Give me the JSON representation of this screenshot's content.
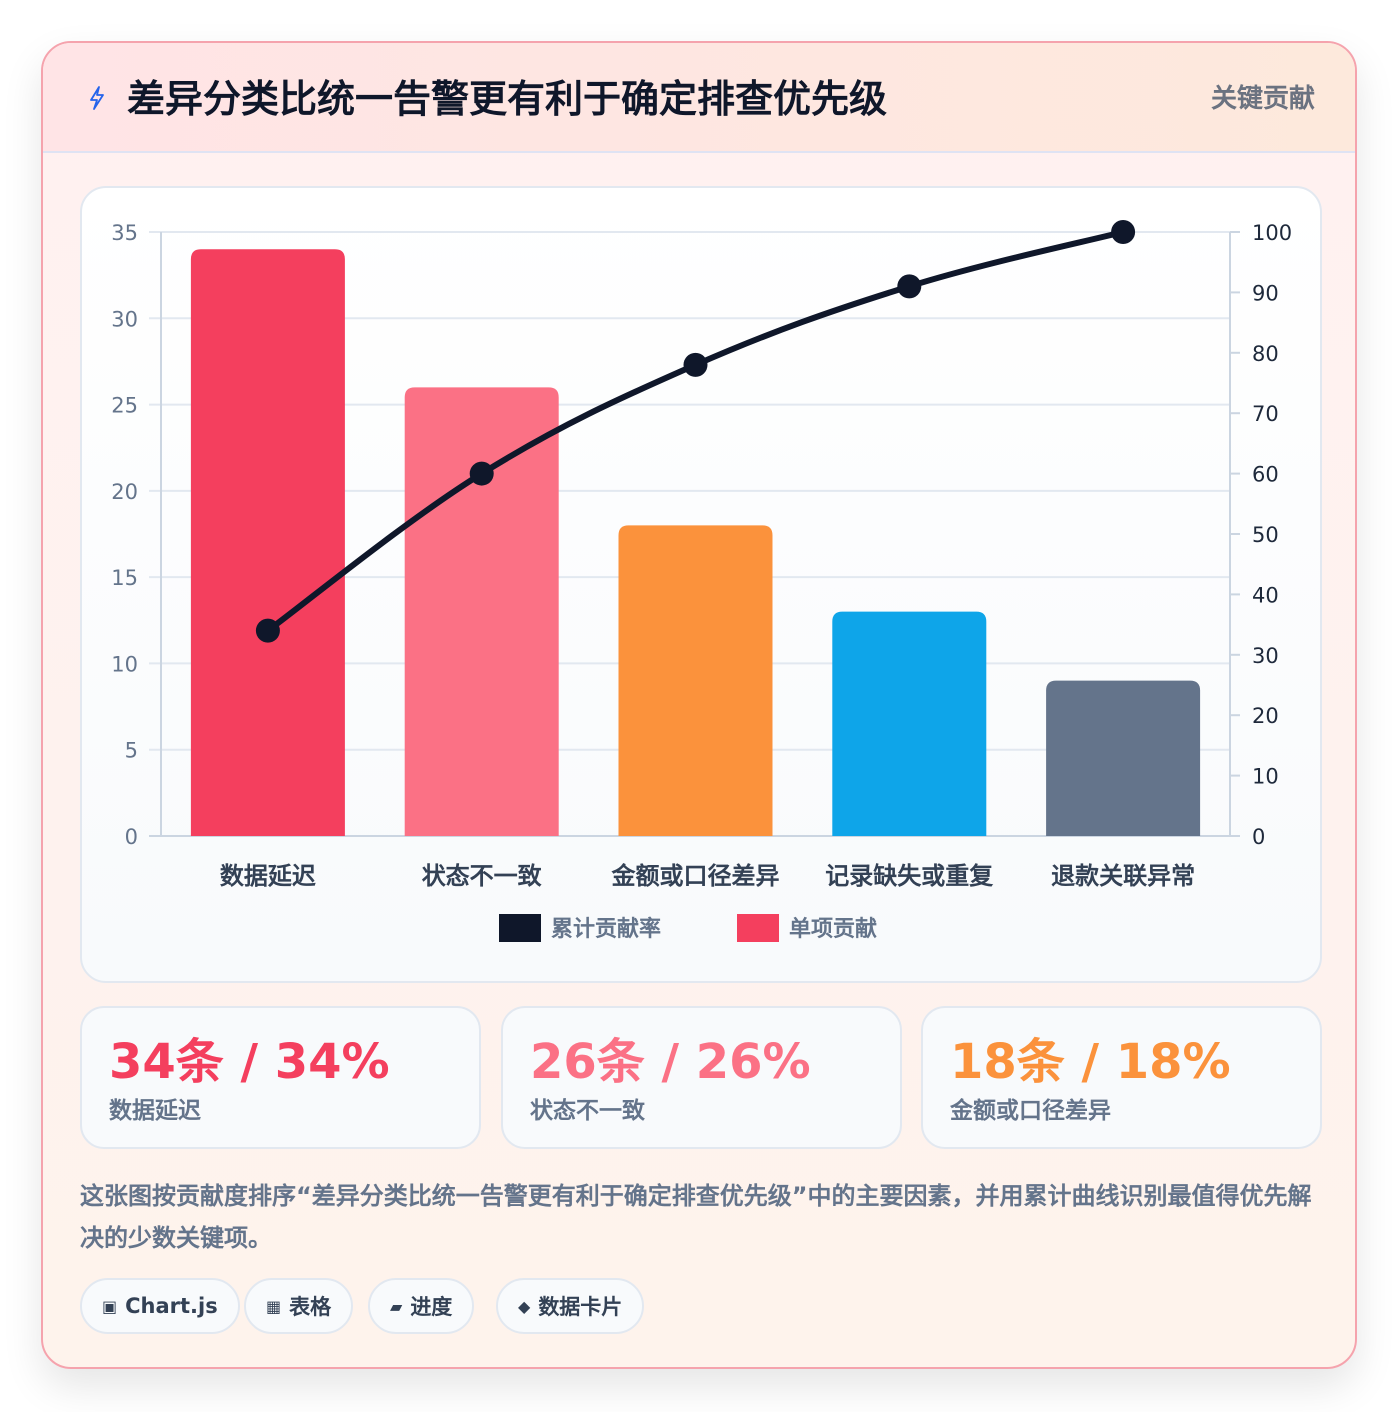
{
  "header": {
    "title": "差异分类比统一告警更有利于确定排查优先级",
    "tag": "关键贡献",
    "icon": "lightning-bolt-icon"
  },
  "chart_data": {
    "type": "bar",
    "categories": [
      "数据延迟",
      "状态不一致",
      "金额或口径差异",
      "记录缺失或重复",
      "退款关联异常"
    ],
    "series": [
      {
        "name": "单项贡献",
        "type": "bar",
        "axis": "left",
        "values": [
          34,
          26,
          18,
          13,
          9
        ]
      },
      {
        "name": "累计贡献率",
        "type": "line",
        "axis": "right",
        "values": [
          34,
          60,
          78,
          91,
          100
        ]
      }
    ],
    "bar_colors": [
      "#f43f5e",
      "#fb7185",
      "#fb923c",
      "#0ea5e9",
      "#64748b"
    ],
    "line_color": "#0f172a",
    "ylim_left": [
      0,
      35
    ],
    "ylim_right": [
      0,
      100
    ],
    "yticks_left": [
      "0",
      "5",
      "10",
      "15",
      "20",
      "25",
      "30",
      "35"
    ],
    "yticks_right": [
      "0",
      "10",
      "20",
      "30",
      "40",
      "50",
      "60",
      "70",
      "80",
      "90",
      "100"
    ],
    "legend": [
      {
        "label": "累计贡献率",
        "color": "#0f172a"
      },
      {
        "label": "单项贡献",
        "color": "#f43f5e"
      }
    ],
    "legend_position": "bottom",
    "grid": true
  },
  "stats": [
    {
      "value": "34条 / 34%",
      "label": "数据延迟",
      "color": "#f43f5e"
    },
    {
      "value": "26条 / 26%",
      "label": "状态不一致",
      "color": "#fb7185"
    },
    {
      "value": "18条 / 18%",
      "label": "金额或口径差异",
      "color": "#fb923c"
    }
  ],
  "description": "这张图按贡献度排序“差异分类比统一告警更有利于确定排查优先级”中的主要因素，并用累计曲线识别最值得优先解决的少数关键项。",
  "pills": [
    {
      "icon": "▣",
      "label": "Chart.js"
    },
    {
      "icon": "▦",
      "label": "表格"
    },
    {
      "icon": "▰",
      "label": "进度"
    },
    {
      "icon": "◆",
      "label": "数据卡片"
    }
  ]
}
